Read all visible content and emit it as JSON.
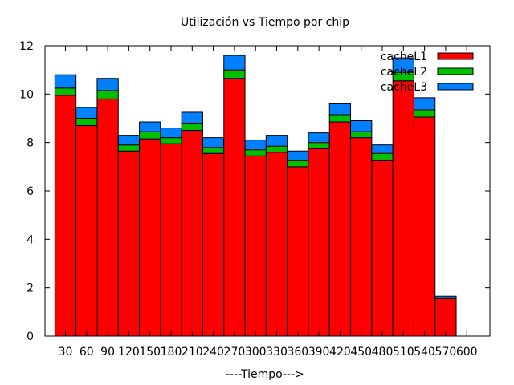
{
  "chart_data": {
    "type": "bar",
    "stacked": true,
    "title": "Utilización vs Tiempo por chip",
    "xlabel": "----Tiempo--->",
    "ylabel": "",
    "ylim": [
      0,
      12
    ],
    "yticks": [
      "0",
      "2",
      "4",
      "6",
      "8",
      "10",
      "12"
    ],
    "categories": [
      "30",
      "60",
      "90",
      "120",
      "150",
      "180",
      "210",
      "240",
      "270",
      "300",
      "330",
      "360",
      "390",
      "420",
      "450",
      "480",
      "510",
      "540",
      "570",
      "600"
    ],
    "series": [
      {
        "name": "cacheL1",
        "color": "#ff0000",
        "values": [
          9.95,
          8.7,
          9.8,
          7.65,
          8.15,
          7.95,
          8.5,
          7.55,
          10.65,
          7.45,
          7.6,
          7.0,
          7.75,
          8.85,
          8.2,
          7.25,
          10.55,
          9.05,
          1.55,
          0
        ]
      },
      {
        "name": "cacheL2",
        "color": "#00c000",
        "values": [
          0.3,
          0.3,
          0.35,
          0.25,
          0.3,
          0.25,
          0.3,
          0.25,
          0.35,
          0.25,
          0.25,
          0.25,
          0.25,
          0.3,
          0.25,
          0.3,
          0.35,
          0.3,
          0.03,
          0
        ]
      },
      {
        "name": "cacheL3",
        "color": "#0080ff",
        "values": [
          0.55,
          0.45,
          0.5,
          0.4,
          0.4,
          0.4,
          0.45,
          0.4,
          0.6,
          0.4,
          0.45,
          0.4,
          0.4,
          0.45,
          0.45,
          0.35,
          0.6,
          0.5,
          0.07,
          0
        ]
      }
    ],
    "legend_position": "top-right",
    "grid": false
  }
}
